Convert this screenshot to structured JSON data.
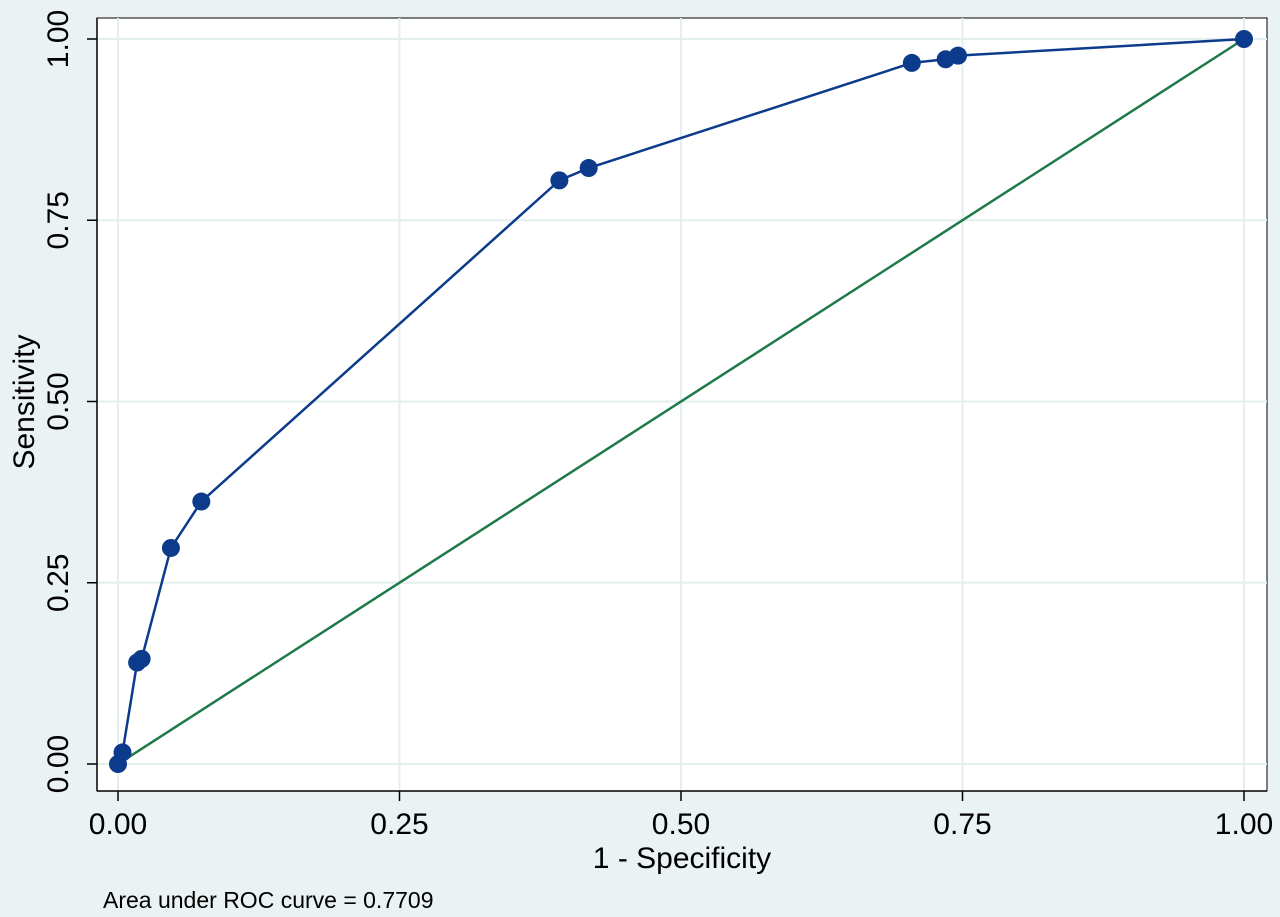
{
  "chart_data": {
    "type": "line",
    "xlabel": "1 - Specificity",
    "ylabel": "Sensitivity",
    "xlim": [
      0,
      1
    ],
    "ylim": [
      0,
      1
    ],
    "x_ticks": [
      "0.00",
      "0.25",
      "0.50",
      "0.75",
      "1.00"
    ],
    "y_ticks": [
      "0.00",
      "0.25",
      "0.50",
      "0.75",
      "1.00"
    ],
    "grid": true,
    "note": "Area under ROC curve = 0.7709",
    "series": [
      {
        "kind": "roc-curve",
        "color": "#0d3b8c",
        "markers": true,
        "x": [
          0.0,
          0.004,
          0.017,
          0.021,
          0.047,
          0.074,
          0.392,
          0.418,
          0.705,
          0.735,
          0.746,
          1.0
        ],
        "y": [
          0.0,
          0.016,
          0.14,
          0.145,
          0.298,
          0.362,
          0.805,
          0.822,
          0.967,
          0.972,
          0.977,
          1.0
        ]
      },
      {
        "kind": "reference-line",
        "color": "#1f7a4a",
        "markers": false,
        "x": [
          0,
          1
        ],
        "y": [
          0,
          1
        ]
      }
    ]
  }
}
